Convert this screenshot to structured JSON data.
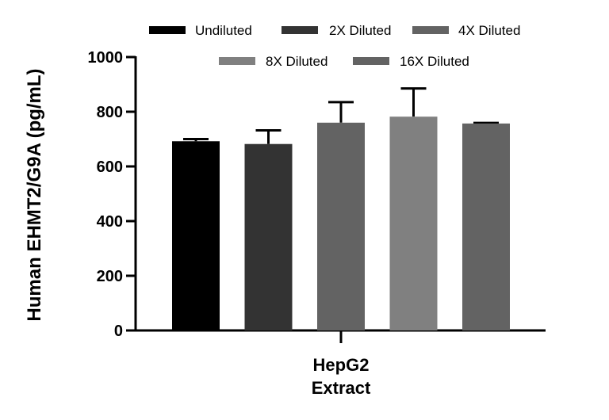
{
  "chart_data": {
    "type": "bar",
    "categories": [
      "HepG2 Extract"
    ],
    "category_label_lines": [
      "HepG2",
      "Extract"
    ],
    "ylabel": "Human EHMT2/G9A (pg/mL)",
    "ylim": [
      0,
      1000
    ],
    "yticks": [
      0,
      200,
      400,
      600,
      800,
      1000
    ],
    "grid": false,
    "legend_position": "top",
    "series": [
      {
        "name": "Undiluted",
        "values": [
          692
        ],
        "error": [
          8
        ],
        "color": "#000000"
      },
      {
        "name": "2X Diluted",
        "values": [
          682
        ],
        "error": [
          50
        ],
        "color": "#333333"
      },
      {
        "name": "4X Diluted",
        "values": [
          760
        ],
        "error": [
          75
        ],
        "color": "#636363"
      },
      {
        "name": "8X Diluted",
        "values": [
          782
        ],
        "error": [
          103
        ],
        "color": "#808080"
      },
      {
        "name": "16X Diluted",
        "values": [
          757
        ],
        "error": [
          2
        ],
        "color": "#636363"
      }
    ]
  }
}
